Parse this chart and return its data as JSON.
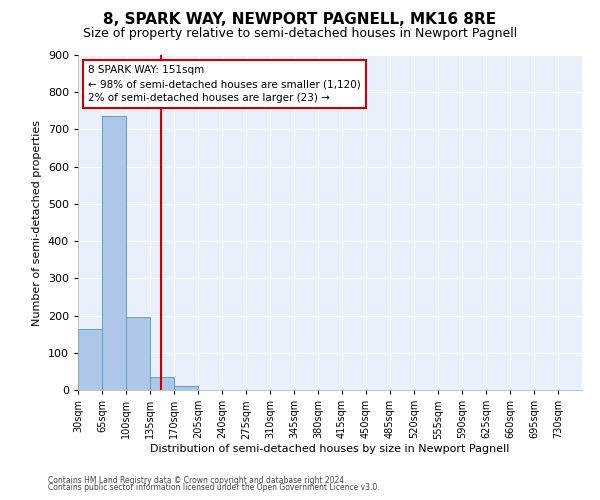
{
  "title": "8, SPARK WAY, NEWPORT PAGNELL, MK16 8RE",
  "subtitle": "Size of property relative to semi-detached houses in Newport Pagnell",
  "xlabel": "Distribution of semi-detached houses by size in Newport Pagnell",
  "ylabel": "Number of semi-detached properties",
  "footnote1": "Contains HM Land Registry data © Crown copyright and database right 2024.",
  "footnote2": "Contains public sector information licensed under the Open Government Licence v3.0.",
  "bin_starts": [
    30,
    65,
    100,
    135,
    170,
    205,
    240,
    275,
    310,
    345,
    380,
    415,
    450,
    485,
    520,
    555,
    590,
    625,
    660,
    695,
    730
  ],
  "bin_width": 35,
  "bar_heights": [
    165,
    735,
    195,
    35,
    10,
    0,
    0,
    0,
    0,
    0,
    0,
    0,
    0,
    0,
    0,
    0,
    0,
    0,
    0,
    0,
    0
  ],
  "bar_color": "#aec6e8",
  "bar_edge_color": "#5a9fd4",
  "vline_x": 151,
  "vline_color": "#cc0000",
  "annotation_text": "8 SPARK WAY: 151sqm\n← 98% of semi-detached houses are smaller (1,120)\n2% of semi-detached houses are larger (23) →",
  "annotation_box_color": "#ffffff",
  "annotation_box_edge": "#cc0000",
  "ylim": [
    0,
    900
  ],
  "yticks": [
    0,
    100,
    200,
    300,
    400,
    500,
    600,
    700,
    800,
    900
  ],
  "bg_color": "#e8f0fb",
  "grid_color": "#d0d8e8",
  "title_fontsize": 11,
  "subtitle_fontsize": 9,
  "tick_labelsize": 7
}
